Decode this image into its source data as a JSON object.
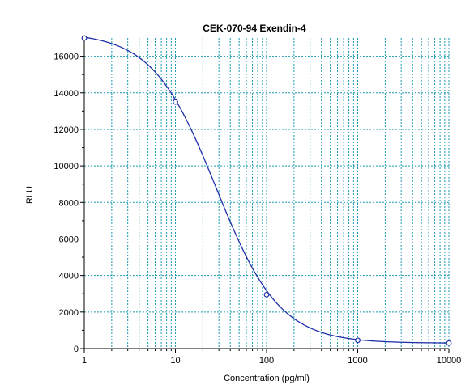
{
  "chart_data": {
    "type": "scatter",
    "title": "CEK-070-94 Exendin-4",
    "xlabel": "Concentration (pg/ml)",
    "ylabel": "RLU",
    "xscale": "log",
    "xlim": [
      1,
      10000
    ],
    "ylim": [
      0,
      17000
    ],
    "x_tick_labels": [
      "1",
      "10",
      "100",
      "1000",
      "10000"
    ],
    "y_tick_labels": [
      "0",
      "2000",
      "4000",
      "6000",
      "8000",
      "10000",
      "12000",
      "14000",
      "16000"
    ],
    "grid": "vertical log gridlines, horizontal gridlines",
    "series": [
      {
        "kind": "points",
        "x": [
          1,
          10,
          100,
          1000,
          10000
        ],
        "y": [
          17000,
          13500,
          2950,
          450,
          300
        ]
      },
      {
        "kind": "fit-curve",
        "model": "4PL",
        "params": {
          "top": 17300,
          "bottom": 295,
          "ec50": 28,
          "hill": 1.25
        }
      }
    ],
    "colors": {
      "curve": "#1f2fa8",
      "points": "#1f2fa8",
      "grid": "#1a9ab0",
      "axis": "#000000"
    }
  }
}
